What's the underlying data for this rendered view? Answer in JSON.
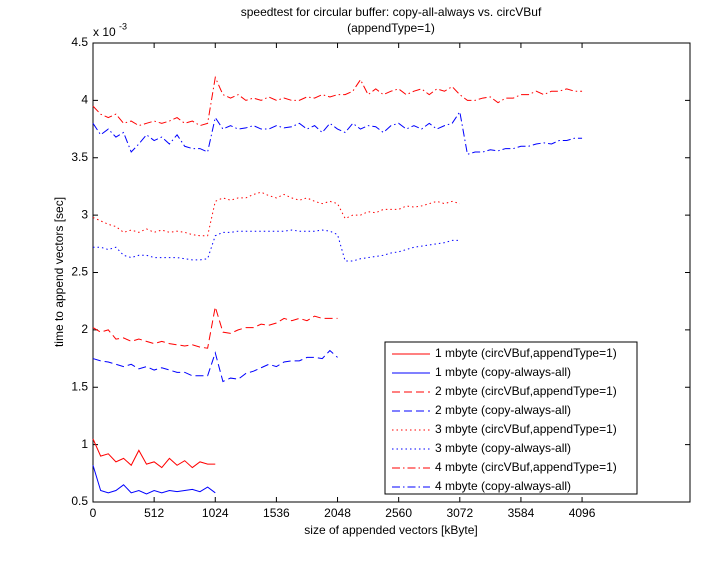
{
  "chart_data": {
    "type": "line",
    "title": [
      "speedtest for circular buffer: copy-all-always vs. circVBuf",
      "(appendType=1)"
    ],
    "xlabel": "size of appended vectors [kByte]",
    "ylabel": "time to append vectors [sec]",
    "y_exponent": {
      "base": "x 10",
      "power": "-3"
    },
    "xlim": [
      0,
      5000
    ],
    "ylim": [
      0.5,
      4.5
    ],
    "xticks": [
      0,
      512,
      1024,
      1536,
      2048,
      2560,
      3072,
      3584,
      4096
    ],
    "yticks": [
      0.5,
      1,
      1.5,
      2,
      2.5,
      3,
      3.5,
      4,
      4.5
    ],
    "legend": "lower right",
    "x": [
      0,
      64,
      128,
      192,
      256,
      320,
      384,
      448,
      512,
      576,
      640,
      704,
      768,
      832,
      896,
      960,
      1024,
      1088,
      1152,
      1216,
      1280,
      1344,
      1408,
      1472,
      1536,
      1600,
      1664,
      1728,
      1792,
      1856,
      1920,
      1984,
      2048,
      2112,
      2176,
      2240,
      2304,
      2368,
      2432,
      2496,
      2560,
      2624,
      2688,
      2752,
      2816,
      2880,
      2944,
      3008,
      3072,
      3136,
      3200,
      3264,
      3328,
      3392,
      3456,
      3520,
      3584,
      3648,
      3712,
      3776,
      3840,
      3904,
      3968,
      4032,
      4096
    ],
    "series": [
      {
        "name": "1 mbyte (circVBuf,appendType=1)",
        "color": "#ff0000",
        "line_style": "solid",
        "values": [
          1.05,
          0.9,
          0.92,
          0.85,
          0.88,
          0.82,
          0.95,
          0.83,
          0.85,
          0.8,
          0.88,
          0.82,
          0.86,
          0.8,
          0.85,
          0.83,
          0.83,
          null,
          null,
          null,
          null,
          null,
          null,
          null,
          null,
          null,
          null,
          null,
          null,
          null,
          null,
          null,
          null,
          null,
          null,
          null,
          null,
          null,
          null,
          null,
          null,
          null,
          null,
          null,
          null,
          null,
          null,
          null,
          null,
          null,
          null,
          null,
          null,
          null,
          null,
          null,
          null,
          null,
          null,
          null,
          null,
          null,
          null,
          null,
          null
        ]
      },
      {
        "name": "1 mbyte (copy-always-all)",
        "color": "#0000ff",
        "line_style": "solid",
        "values": [
          0.82,
          0.6,
          0.58,
          0.6,
          0.65,
          0.58,
          0.6,
          0.57,
          0.6,
          0.58,
          0.6,
          0.59,
          0.6,
          0.61,
          0.59,
          0.63,
          0.58,
          null,
          null,
          null,
          null,
          null,
          null,
          null,
          null,
          null,
          null,
          null,
          null,
          null,
          null,
          null,
          null,
          null,
          null,
          null,
          null,
          null,
          null,
          null,
          null,
          null,
          null,
          null,
          null,
          null,
          null,
          null,
          null,
          null,
          null,
          null,
          null,
          null,
          null,
          null,
          null,
          null,
          null,
          null,
          null,
          null,
          null,
          null,
          null
        ]
      },
      {
        "name": "2 mbyte (circVBuf,appendType=1)",
        "color": "#ff0000",
        "line_style": "dashed",
        "values": [
          2.02,
          1.98,
          2.0,
          1.92,
          1.93,
          1.9,
          1.92,
          1.9,
          1.88,
          1.9,
          1.88,
          1.87,
          1.86,
          1.87,
          1.85,
          1.84,
          2.2,
          1.98,
          1.97,
          2.0,
          2.02,
          2.02,
          2.05,
          2.04,
          2.06,
          2.1,
          2.08,
          2.1,
          2.08,
          2.12,
          2.1,
          2.1,
          2.1,
          null,
          null,
          null,
          null,
          null,
          null,
          null,
          null,
          null,
          null,
          null,
          null,
          null,
          null,
          null,
          null,
          null,
          null,
          null,
          null,
          null,
          null,
          null,
          null,
          null,
          null,
          null,
          null,
          null,
          null,
          null,
          null
        ]
      },
      {
        "name": "2 mbyte (copy-always-all)",
        "color": "#0000ff",
        "line_style": "dashed",
        "values": [
          1.75,
          1.73,
          1.72,
          1.7,
          1.68,
          1.7,
          1.66,
          1.68,
          1.65,
          1.67,
          1.65,
          1.63,
          1.63,
          1.6,
          1.6,
          1.6,
          1.8,
          1.55,
          1.58,
          1.57,
          1.62,
          1.64,
          1.67,
          1.7,
          1.68,
          1.72,
          1.73,
          1.73,
          1.76,
          1.76,
          1.75,
          1.82,
          1.76,
          null,
          null,
          null,
          null,
          null,
          null,
          null,
          null,
          null,
          null,
          null,
          null,
          null,
          null,
          null,
          null,
          null,
          null,
          null,
          null,
          null,
          null,
          null,
          null,
          null,
          null,
          null,
          null,
          null,
          null,
          null,
          null
        ]
      },
      {
        "name": "3 mbyte (circVBuf,appendType=1)",
        "color": "#ff0000",
        "line_style": "dotted",
        "values": [
          2.98,
          2.95,
          2.92,
          2.9,
          2.85,
          2.87,
          2.85,
          2.88,
          2.85,
          2.87,
          2.85,
          2.86,
          2.85,
          2.83,
          2.82,
          2.82,
          3.12,
          3.15,
          3.13,
          3.15,
          3.15,
          3.18,
          3.2,
          3.17,
          3.15,
          3.18,
          3.15,
          3.13,
          3.15,
          3.12,
          3.1,
          3.12,
          3.1,
          2.97,
          3.0,
          3.0,
          3.03,
          3.02,
          3.05,
          3.05,
          3.05,
          3.08,
          3.07,
          3.08,
          3.1,
          3.12,
          3.1,
          3.12,
          3.1,
          null,
          null,
          null,
          null,
          null,
          null,
          null,
          null,
          null,
          null,
          null,
          null,
          null,
          null,
          null,
          null
        ]
      },
      {
        "name": "3 mbyte (copy-always-all)",
        "color": "#0000ff",
        "line_style": "dotted",
        "values": [
          2.72,
          2.72,
          2.7,
          2.72,
          2.65,
          2.63,
          2.65,
          2.65,
          2.63,
          2.63,
          2.63,
          2.63,
          2.62,
          2.61,
          2.61,
          2.62,
          2.82,
          2.85,
          2.85,
          2.86,
          2.86,
          2.86,
          2.86,
          2.86,
          2.86,
          2.86,
          2.87,
          2.86,
          2.86,
          2.86,
          2.87,
          2.86,
          2.83,
          2.6,
          2.6,
          2.62,
          2.63,
          2.64,
          2.65,
          2.67,
          2.68,
          2.7,
          2.72,
          2.73,
          2.74,
          2.75,
          2.76,
          2.78,
          2.78,
          null,
          null,
          null,
          null,
          null,
          null,
          null,
          null,
          null,
          null,
          null,
          null,
          null,
          null,
          null,
          null
        ]
      },
      {
        "name": "4 mbyte (circVBuf,appendType=1)",
        "color": "#ff0000",
        "line_style": "dashdot",
        "values": [
          3.95,
          3.88,
          3.85,
          3.88,
          3.8,
          3.82,
          3.78,
          3.8,
          3.82,
          3.8,
          3.82,
          3.85,
          3.8,
          3.82,
          3.78,
          3.8,
          4.2,
          4.05,
          4.02,
          4.05,
          4.0,
          4.02,
          4.0,
          4.03,
          4.0,
          4.02,
          4.0,
          4.0,
          4.03,
          4.02,
          4.05,
          4.03,
          4.05,
          4.05,
          4.08,
          4.18,
          4.05,
          4.1,
          4.05,
          4.08,
          4.1,
          4.05,
          4.08,
          4.1,
          4.05,
          4.1,
          4.08,
          4.12,
          4.05,
          4.0,
          4.0,
          4.02,
          4.03,
          3.98,
          4.02,
          4.02,
          4.05,
          4.05,
          4.08,
          4.05,
          4.08,
          4.08,
          4.1,
          4.08,
          4.08
        ]
      },
      {
        "name": "4 mbyte (copy-always-all)",
        "color": "#0000ff",
        "line_style": "dashdot",
        "values": [
          3.8,
          3.7,
          3.75,
          3.68,
          3.72,
          3.55,
          3.62,
          3.7,
          3.65,
          3.68,
          3.62,
          3.7,
          3.6,
          3.58,
          3.58,
          3.55,
          3.85,
          3.75,
          3.78,
          3.75,
          3.76,
          3.78,
          3.75,
          3.75,
          3.78,
          3.76,
          3.77,
          3.8,
          3.75,
          3.78,
          3.72,
          3.8,
          3.75,
          3.72,
          3.8,
          3.75,
          3.78,
          3.77,
          3.72,
          3.78,
          3.8,
          3.75,
          3.78,
          3.75,
          3.8,
          3.75,
          3.78,
          3.8,
          3.9,
          3.53,
          3.55,
          3.55,
          3.57,
          3.56,
          3.58,
          3.58,
          3.6,
          3.6,
          3.62,
          3.63,
          3.62,
          3.65,
          3.65,
          3.67,
          3.67
        ]
      }
    ]
  }
}
